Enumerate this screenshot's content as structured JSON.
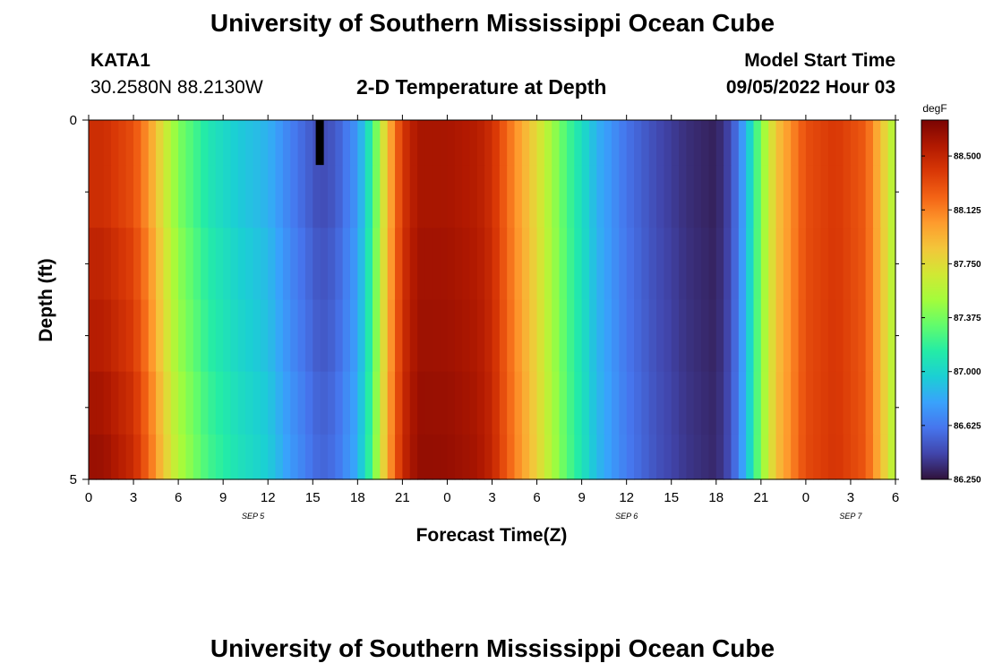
{
  "page": {
    "title": "University of Southern Mississippi Ocean Cube",
    "title_bottom": "University of Southern Mississippi Ocean Cube",
    "station": "KATA1",
    "coords": "30.2580N  88.2130W",
    "subtitle": "2-D Temperature at Depth",
    "model_label": "Model Start Time",
    "model_time": "09/05/2022 Hour 03"
  },
  "chart_data": {
    "type": "heatmap",
    "title": "2-D Temperature at Depth",
    "xlabel": "Forecast Time(Z)",
    "ylabel": "Depth (ft)",
    "x_tick_labels": [
      "0",
      "3",
      "6",
      "9",
      "12",
      "15",
      "18",
      "21",
      "0",
      "3",
      "6",
      "9",
      "12",
      "15",
      "18",
      "21",
      "0",
      "3",
      "6"
    ],
    "x_ticks_hours": [
      0,
      3,
      6,
      9,
      12,
      15,
      18,
      21,
      24,
      27,
      30,
      33,
      36,
      39,
      42,
      45,
      48,
      51,
      54
    ],
    "date_labels": [
      {
        "text": "SEP 5",
        "hour": 11
      },
      {
        "text": "SEP 6",
        "hour": 36
      },
      {
        "text": "SEP 7",
        "hour": 51
      }
    ],
    "xlim_hours": [
      0,
      54
    ],
    "y_tick_labels": [
      "0",
      "5"
    ],
    "ylim_ft": [
      0,
      5
    ],
    "depth_levels_ft": [
      0.25,
      1.0,
      2.0,
      3.0,
      4.0,
      4.75
    ],
    "time_step_hours": 0.5,
    "colorbar": {
      "units": "degF",
      "min": 86.25,
      "max": 88.75,
      "tick_labels": [
        "88.500",
        "88.125",
        "87.750",
        "87.375",
        "87.000",
        "86.625",
        "86.250"
      ],
      "tick_values": [
        88.5,
        88.125,
        87.75,
        87.375,
        87.0,
        86.625,
        86.25
      ],
      "colormap": [
        "#30123b",
        "#4145ab",
        "#4675ed",
        "#39a2fc",
        "#1bcfd4",
        "#24eca6",
        "#61fc6c",
        "#a4fc3b",
        "#d1e834",
        "#f3c63a",
        "#fe9b2d",
        "#f36315",
        "#d93806",
        "#b11901",
        "#7a0403"
      ]
    },
    "surface_profile": {
      "hours": [
        0,
        1,
        3,
        4,
        5,
        6,
        8,
        10,
        12,
        13.5,
        14.5,
        15.5,
        16.5,
        18,
        19,
        20,
        21,
        22,
        24,
        26,
        27,
        28,
        30,
        32,
        34,
        36,
        38,
        40,
        42,
        43,
        44,
        45,
        46,
        48,
        50,
        52,
        53,
        54
      ],
      "temps_degF": [
        88.45,
        88.45,
        88.3,
        88.05,
        87.7,
        87.4,
        87.1,
        86.95,
        86.85,
        86.65,
        86.55,
        86.45,
        86.5,
        86.75,
        87.2,
        87.9,
        88.4,
        88.6,
        88.6,
        88.55,
        88.45,
        88.2,
        87.75,
        87.25,
        86.85,
        86.6,
        86.45,
        86.35,
        86.3,
        86.45,
        86.85,
        87.4,
        87.85,
        88.3,
        88.4,
        88.25,
        87.9,
        87.5
      ]
    },
    "depth_offsets_degF": [
      0.0,
      0.0,
      0.06,
      0.1,
      0.16,
      0.2
    ],
    "depth_offset_decay_hours": 20,
    "missing_cell": {
      "hour": 15.5,
      "depth_ft": 0.25,
      "color": "#000000"
    }
  }
}
